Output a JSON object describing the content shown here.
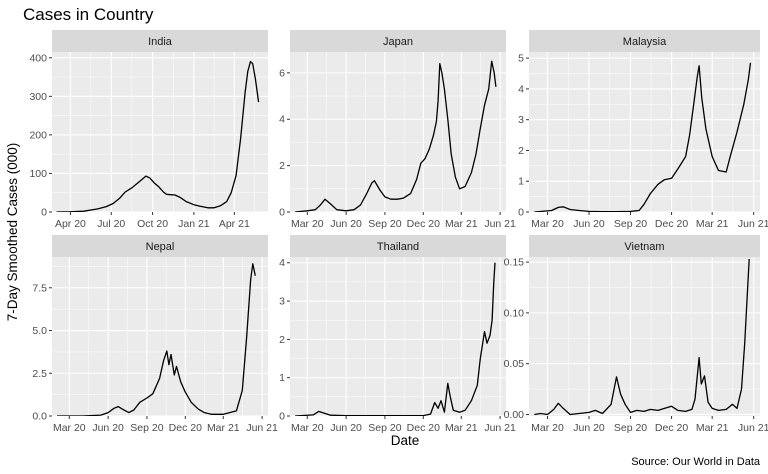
{
  "chart_data": {
    "type": "line",
    "title": "Cases in Country",
    "xlabel": "Date",
    "ylabel": "7-Day Smoothed Cases (000)",
    "caption": "Source:  Our World in Data",
    "grid": true,
    "panels": [
      {
        "name": "India",
        "ylim": [
          0,
          415
        ],
        "yticks": [
          0,
          100,
          200,
          300,
          400
        ],
        "ytick_labels": [
          "0",
          "100",
          "200",
          "300",
          "400"
        ],
        "xlim": [
          "2020-02-20",
          "2021-06-15"
        ],
        "xticks": [
          "2020-04-01",
          "2020-07-01",
          "2020-10-01",
          "2021-01-01",
          "2021-04-01"
        ],
        "xtick_labels": [
          "Apr 20",
          "Jul 20",
          "Oct 20",
          "Jan 21",
          "Apr 21"
        ],
        "points": [
          [
            "2020-03-01",
            0
          ],
          [
            "2020-04-01",
            0.5
          ],
          [
            "2020-05-01",
            2
          ],
          [
            "2020-06-01",
            8
          ],
          [
            "2020-06-20",
            14
          ],
          [
            "2020-07-05",
            22
          ],
          [
            "2020-07-20",
            36
          ],
          [
            "2020-08-01",
            52
          ],
          [
            "2020-08-15",
            62
          ],
          [
            "2020-09-01",
            78
          ],
          [
            "2020-09-16",
            93
          ],
          [
            "2020-09-25",
            88
          ],
          [
            "2020-10-05",
            75
          ],
          [
            "2020-10-15",
            65
          ],
          [
            "2020-10-25",
            52
          ],
          [
            "2020-11-01",
            46
          ],
          [
            "2020-11-10",
            45
          ],
          [
            "2020-11-20",
            44
          ],
          [
            "2020-12-01",
            38
          ],
          [
            "2020-12-15",
            27
          ],
          [
            "2021-01-01",
            19
          ],
          [
            "2021-01-15",
            15
          ],
          [
            "2021-02-01",
            11
          ],
          [
            "2021-02-15",
            11
          ],
          [
            "2021-03-01",
            16
          ],
          [
            "2021-03-15",
            27
          ],
          [
            "2021-03-25",
            50
          ],
          [
            "2021-04-05",
            95
          ],
          [
            "2021-04-15",
            190
          ],
          [
            "2021-04-25",
            310
          ],
          [
            "2021-05-01",
            365
          ],
          [
            "2021-05-07",
            390
          ],
          [
            "2021-05-12",
            385
          ],
          [
            "2021-05-18",
            345
          ],
          [
            "2021-05-25",
            285
          ]
        ]
      },
      {
        "name": "Japan",
        "ylim": [
          0,
          6.9
        ],
        "yticks": [
          0,
          2,
          4,
          6
        ],
        "ytick_labels": [
          "0",
          "2",
          "4",
          "6"
        ],
        "xlim": [
          "2020-01-20",
          "2021-06-15"
        ],
        "xticks": [
          "2020-03-01",
          "2020-06-01",
          "2020-09-01",
          "2020-12-01",
          "2021-03-01",
          "2021-06-01"
        ],
        "xtick_labels": [
          "Mar 20",
          "Jun 20",
          "Sep 20",
          "Dec 20",
          "Mar 21",
          "Jun 21"
        ],
        "points": [
          [
            "2020-02-01",
            0
          ],
          [
            "2020-03-01",
            0.05
          ],
          [
            "2020-03-20",
            0.1
          ],
          [
            "2020-04-01",
            0.3
          ],
          [
            "2020-04-12",
            0.55
          ],
          [
            "2020-04-25",
            0.35
          ],
          [
            "2020-05-10",
            0.1
          ],
          [
            "2020-06-01",
            0.05
          ],
          [
            "2020-06-20",
            0.1
          ],
          [
            "2020-07-05",
            0.3
          ],
          [
            "2020-07-20",
            0.8
          ],
          [
            "2020-08-01",
            1.25
          ],
          [
            "2020-08-07",
            1.35
          ],
          [
            "2020-08-20",
            0.95
          ],
          [
            "2020-09-01",
            0.65
          ],
          [
            "2020-09-15",
            0.55
          ],
          [
            "2020-10-01",
            0.55
          ],
          [
            "2020-10-15",
            0.6
          ],
          [
            "2020-11-01",
            0.8
          ],
          [
            "2020-11-15",
            1.4
          ],
          [
            "2020-11-25",
            2.1
          ],
          [
            "2020-12-05",
            2.3
          ],
          [
            "2020-12-15",
            2.7
          ],
          [
            "2020-12-25",
            3.3
          ],
          [
            "2021-01-01",
            3.9
          ],
          [
            "2021-01-05",
            4.8
          ],
          [
            "2021-01-09",
            6.4
          ],
          [
            "2021-01-14",
            6.0
          ],
          [
            "2021-01-20",
            5.3
          ],
          [
            "2021-01-28",
            4.0
          ],
          [
            "2021-02-05",
            2.5
          ],
          [
            "2021-02-15",
            1.5
          ],
          [
            "2021-02-25",
            1.0
          ],
          [
            "2021-03-10",
            1.1
          ],
          [
            "2021-03-25",
            1.7
          ],
          [
            "2021-04-05",
            2.5
          ],
          [
            "2021-04-15",
            3.6
          ],
          [
            "2021-04-25",
            4.6
          ],
          [
            "2021-05-05",
            5.3
          ],
          [
            "2021-05-12",
            6.5
          ],
          [
            "2021-05-18",
            6.0
          ],
          [
            "2021-05-22",
            5.4
          ]
        ]
      },
      {
        "name": "Malaysia",
        "ylim": [
          0,
          5.2
        ],
        "yticks": [
          0,
          1,
          2,
          3,
          4,
          5
        ],
        "ytick_labels": [
          "0",
          "1",
          "2",
          "3",
          "4",
          "5"
        ],
        "xlim": [
          "2020-01-20",
          "2021-06-15"
        ],
        "xticks": [
          "2020-03-01",
          "2020-06-01",
          "2020-09-01",
          "2020-12-01",
          "2021-03-01",
          "2021-06-01"
        ],
        "xtick_labels": [
          "Mar 20",
          "Jun 20",
          "Sep 20",
          "Dec 20",
          "Mar 21",
          "Jun 21"
        ],
        "points": [
          [
            "2020-02-01",
            0
          ],
          [
            "2020-03-10",
            0.05
          ],
          [
            "2020-03-25",
            0.15
          ],
          [
            "2020-04-05",
            0.17
          ],
          [
            "2020-04-20",
            0.08
          ],
          [
            "2020-05-10",
            0.05
          ],
          [
            "2020-06-01",
            0.02
          ],
          [
            "2020-07-01",
            0.01
          ],
          [
            "2020-08-01",
            0.01
          ],
          [
            "2020-09-01",
            0.02
          ],
          [
            "2020-09-20",
            0.05
          ],
          [
            "2020-10-01",
            0.25
          ],
          [
            "2020-10-15",
            0.6
          ],
          [
            "2020-11-01",
            0.9
          ],
          [
            "2020-11-15",
            1.05
          ],
          [
            "2020-12-01",
            1.1
          ],
          [
            "2020-12-15",
            1.4
          ],
          [
            "2021-01-01",
            1.8
          ],
          [
            "2021-01-10",
            2.5
          ],
          [
            "2021-01-20",
            3.6
          ],
          [
            "2021-01-27",
            4.4
          ],
          [
            "2021-01-31",
            4.75
          ],
          [
            "2021-02-06",
            3.7
          ],
          [
            "2021-02-15",
            2.7
          ],
          [
            "2021-03-01",
            1.8
          ],
          [
            "2021-03-15",
            1.35
          ],
          [
            "2021-04-01",
            1.3
          ],
          [
            "2021-04-10",
            1.8
          ],
          [
            "2021-04-25",
            2.6
          ],
          [
            "2021-05-10",
            3.5
          ],
          [
            "2021-05-20",
            4.3
          ],
          [
            "2021-05-25",
            4.85
          ]
        ]
      },
      {
        "name": "Nepal",
        "ylim": [
          0,
          9.3
        ],
        "yticks": [
          0,
          2.5,
          5,
          7.5
        ],
        "ytick_labels": [
          "0.0",
          "2.5",
          "5.0",
          "7.5"
        ],
        "xlim": [
          "2020-01-20",
          "2021-06-15"
        ],
        "xticks": [
          "2020-03-01",
          "2020-06-01",
          "2020-09-01",
          "2020-12-01",
          "2021-03-01",
          "2021-06-01"
        ],
        "xtick_labels": [
          "Mar 20",
          "Jun 20",
          "Sep 20",
          "Dec 20",
          "Mar 21",
          "Jun 21"
        ],
        "points": [
          [
            "2020-02-01",
            0
          ],
          [
            "2020-04-01",
            0
          ],
          [
            "2020-05-15",
            0.05
          ],
          [
            "2020-06-01",
            0.2
          ],
          [
            "2020-06-15",
            0.45
          ],
          [
            "2020-06-25",
            0.55
          ],
          [
            "2020-07-05",
            0.4
          ],
          [
            "2020-07-20",
            0.2
          ],
          [
            "2020-08-01",
            0.35
          ],
          [
            "2020-08-15",
            0.8
          ],
          [
            "2020-09-01",
            1.05
          ],
          [
            "2020-09-15",
            1.3
          ],
          [
            "2020-10-01",
            2.2
          ],
          [
            "2020-10-10",
            3.2
          ],
          [
            "2020-10-18",
            3.8
          ],
          [
            "2020-10-23",
            3.0
          ],
          [
            "2020-10-28",
            3.6
          ],
          [
            "2020-11-05",
            2.4
          ],
          [
            "2020-11-10",
            2.9
          ],
          [
            "2020-11-20",
            2.0
          ],
          [
            "2020-12-01",
            1.4
          ],
          [
            "2020-12-15",
            0.8
          ],
          [
            "2021-01-01",
            0.4
          ],
          [
            "2021-01-15",
            0.2
          ],
          [
            "2021-02-01",
            0.1
          ],
          [
            "2021-03-01",
            0.1
          ],
          [
            "2021-04-01",
            0.3
          ],
          [
            "2021-04-15",
            1.5
          ],
          [
            "2021-04-25",
            4.5
          ],
          [
            "2021-05-05",
            8.0
          ],
          [
            "2021-05-10",
            8.9
          ],
          [
            "2021-05-16",
            8.2
          ]
        ]
      },
      {
        "name": "Thailand",
        "ylim": [
          0,
          4.15
        ],
        "yticks": [
          0,
          1,
          2,
          3,
          4
        ],
        "ytick_labels": [
          "0",
          "1",
          "2",
          "3",
          "4"
        ],
        "xlim": [
          "2020-01-20",
          "2021-06-15"
        ],
        "xticks": [
          "2020-03-01",
          "2020-06-01",
          "2020-09-01",
          "2020-12-01",
          "2021-03-01",
          "2021-06-01"
        ],
        "xtick_labels": [
          "Mar 20",
          "Jun 20",
          "Sep 20",
          "Dec 20",
          "Mar 21",
          "Jun 21"
        ],
        "points": [
          [
            "2020-02-01",
            0
          ],
          [
            "2020-03-15",
            0.03
          ],
          [
            "2020-03-28",
            0.12
          ],
          [
            "2020-04-08",
            0.08
          ],
          [
            "2020-04-25",
            0.02
          ],
          [
            "2020-06-01",
            0.01
          ],
          [
            "2020-09-01",
            0.01
          ],
          [
            "2020-12-01",
            0.01
          ],
          [
            "2020-12-18",
            0.05
          ],
          [
            "2020-12-28",
            0.35
          ],
          [
            "2021-01-05",
            0.2
          ],
          [
            "2021-01-12",
            0.4
          ],
          [
            "2021-01-20",
            0.1
          ],
          [
            "2021-01-28",
            0.85
          ],
          [
            "2021-02-03",
            0.5
          ],
          [
            "2021-02-10",
            0.15
          ],
          [
            "2021-02-25",
            0.1
          ],
          [
            "2021-03-10",
            0.15
          ],
          [
            "2021-03-25",
            0.4
          ],
          [
            "2021-04-08",
            0.8
          ],
          [
            "2021-04-15",
            1.5
          ],
          [
            "2021-04-25",
            2.2
          ],
          [
            "2021-05-01",
            1.9
          ],
          [
            "2021-05-08",
            2.1
          ],
          [
            "2021-05-13",
            2.5
          ],
          [
            "2021-05-17",
            3.5
          ],
          [
            "2021-05-20",
            4.0
          ]
        ]
      },
      {
        "name": "Vietnam",
        "ylim": [
          -0.0015,
          0.155
        ],
        "yticks": [
          0,
          0.05,
          0.1,
          0.15
        ],
        "ytick_labels": [
          "0.00",
          "0.05",
          "0.10",
          "0.15"
        ],
        "xlim": [
          "2020-01-20",
          "2021-06-15"
        ],
        "xticks": [
          "2020-03-01",
          "2020-06-01",
          "2020-09-01",
          "2020-12-01",
          "2021-03-01",
          "2021-06-01"
        ],
        "xtick_labels": [
          "Mar 20",
          "Jun 20",
          "Sep 20",
          "Dec 20",
          "Mar 21",
          "Jun 21"
        ],
        "points": [
          [
            "2020-02-01",
            0
          ],
          [
            "2020-02-15",
            0.001
          ],
          [
            "2020-03-01",
            0
          ],
          [
            "2020-03-15",
            0.005
          ],
          [
            "2020-03-25",
            0.011
          ],
          [
            "2020-04-05",
            0.006
          ],
          [
            "2020-04-20",
            0
          ],
          [
            "2020-05-10",
            0.001
          ],
          [
            "2020-06-01",
            0.002
          ],
          [
            "2020-06-15",
            0.004
          ],
          [
            "2020-07-01",
            0.001
          ],
          [
            "2020-07-20",
            0.01
          ],
          [
            "2020-08-01",
            0.037
          ],
          [
            "2020-08-10",
            0.02
          ],
          [
            "2020-08-20",
            0.01
          ],
          [
            "2020-09-01",
            0.002
          ],
          [
            "2020-09-15",
            0.004
          ],
          [
            "2020-10-01",
            0.003
          ],
          [
            "2020-10-15",
            0.005
          ],
          [
            "2020-11-01",
            0.004
          ],
          [
            "2020-11-15",
            0.006
          ],
          [
            "2020-12-01",
            0.008
          ],
          [
            "2020-12-15",
            0.004
          ],
          [
            "2021-01-01",
            0.003
          ],
          [
            "2021-01-15",
            0.005
          ],
          [
            "2021-01-22",
            0.015
          ],
          [
            "2021-01-31",
            0.056
          ],
          [
            "2021-02-05",
            0.03
          ],
          [
            "2021-02-12",
            0.038
          ],
          [
            "2021-02-20",
            0.012
          ],
          [
            "2021-03-01",
            0.006
          ],
          [
            "2021-03-15",
            0.004
          ],
          [
            "2021-04-01",
            0.005
          ],
          [
            "2021-04-15",
            0.01
          ],
          [
            "2021-04-25",
            0.006
          ],
          [
            "2021-05-05",
            0.025
          ],
          [
            "2021-05-12",
            0.07
          ],
          [
            "2021-05-18",
            0.12
          ],
          [
            "2021-05-22",
            0.153
          ]
        ]
      }
    ]
  },
  "colors": {
    "panel_bg": "#ebebeb",
    "strip_bg": "#d9d9d9",
    "grid_major": "#ffffff",
    "line": "#000000",
    "tick": "#333333"
  }
}
